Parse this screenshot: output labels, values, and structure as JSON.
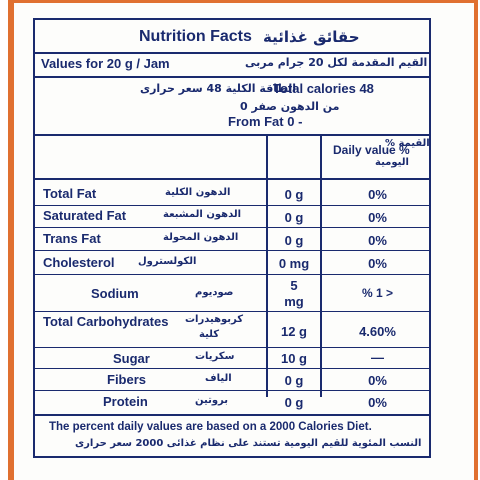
{
  "header": {
    "title": "Nutrition Facts",
    "title_ar": "حقائق غذائية",
    "serving": "Values for 20 g / Jam",
    "serving_ar": "القيم المقدمة لكل 20 جرام مربى",
    "calories_ar": "الطاقة الكلية 48 سعر حرارى",
    "calories": "Total calories 48",
    "fat_cal_ar": "من الدهون صفر 0",
    "fat_cal": "From Fat 0 -"
  },
  "columns": {
    "daily_value": "Daily value %",
    "daily_value_ar_1": "القيمة %",
    "daily_value_ar_2": "اليومية"
  },
  "rows": [
    {
      "name": "Total Fat",
      "name_ar": "الدهون الكلية",
      "amount": "0 g",
      "dv": "0%"
    },
    {
      "name": "Saturated Fat",
      "name_ar": "الدهون المشبعة",
      "amount": "0 g",
      "dv": "0%"
    },
    {
      "name": "Trans Fat",
      "name_ar": "الدهون المحولة",
      "amount": "0 g",
      "dv": "0%"
    },
    {
      "name": "Cholesterol",
      "name_ar": "الكولسترول",
      "amount": "0 mg",
      "dv": "0%"
    },
    {
      "name": "Sodium",
      "name_ar": "صوديوم",
      "amount_1": "5",
      "amount_2": "mg",
      "dv": "% 1 >"
    },
    {
      "name": "Total Carbohydrates",
      "name_ar": "كربوهيدرات",
      "name_ar_2": "كلية",
      "amount": "12 g",
      "dv": "4.60%"
    },
    {
      "name": "Sugar",
      "name_ar": "سكريات",
      "amount": "10 g",
      "dv": "—"
    },
    {
      "name": "Fibers",
      "name_ar": "الياف",
      "amount": "0 g",
      "dv": "0%"
    },
    {
      "name": "Protein",
      "name_ar": "بروتين",
      "amount": "0 g",
      "dv": "0%"
    }
  ],
  "footer": {
    "note": "The percent daily values are based on  a 2000 Calories Diet.",
    "note_ar": "النسب المئوية للقيم اليومية تستند على نظام غذائى 2000 سعر حرارى"
  }
}
